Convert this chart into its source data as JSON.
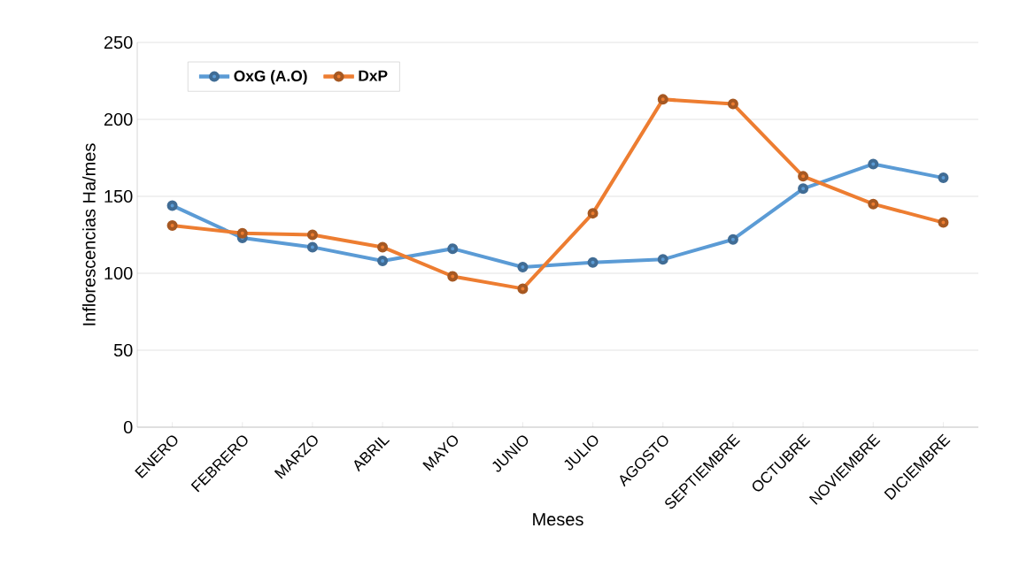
{
  "chart_data": {
    "type": "line",
    "xlabel": "Meses",
    "ylabel": "Inflorescencias Ha/mes",
    "categories": [
      "ENERO",
      "FEBRERO",
      "MARZO",
      "ABRIL",
      "MAYO",
      "JUNIO",
      "JULIO",
      "AGOSTO",
      "SEPTIEMBRE",
      "OCTUBRE",
      "NOVIEMBRE",
      "DICIEMBRE"
    ],
    "series": [
      {
        "name": "OxG (A.O)",
        "color": "#5b9bd5",
        "values": [
          144,
          123,
          117,
          108,
          116,
          104,
          107,
          109,
          122,
          155,
          171,
          162
        ]
      },
      {
        "name": "DxP",
        "color": "#ed7d31",
        "values": [
          131,
          126,
          125,
          117,
          98,
          90,
          139,
          213,
          210,
          163,
          145,
          133
        ]
      }
    ],
    "ylim": [
      0,
      250
    ],
    "yticks": [
      0,
      50,
      100,
      150,
      200,
      250
    ],
    "grid": "y",
    "legend": "top left",
    "marker": "circle",
    "line_style": "solid"
  }
}
